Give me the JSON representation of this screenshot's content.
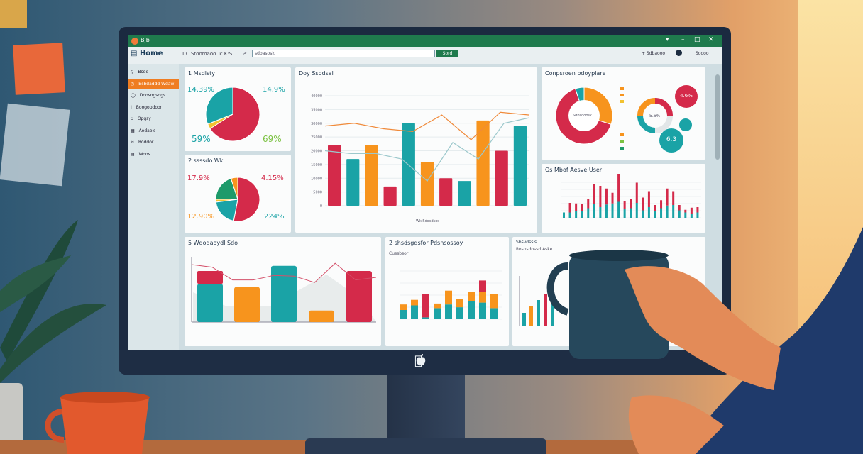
{
  "window": {
    "title": "Bjb",
    "controls": [
      "▾",
      "–",
      "□",
      "✕"
    ]
  },
  "toolbar": {
    "home": "Home",
    "breadcrumb": "T:C Stoomaoo Tc  K:S",
    "search_value": "sdbasosk",
    "search_button": "Sord",
    "right_items": [
      "+ Sdbaooo",
      "Soooo"
    ]
  },
  "sidebar": {
    "items": [
      {
        "label": "Bsdd",
        "icon": "person-icon",
        "active": false
      },
      {
        "label": "Bsbdaddd Wdaw",
        "icon": "clock-icon",
        "active": true
      },
      {
        "label": "Doosogsdgs",
        "icon": "circle-icon",
        "active": false
      },
      {
        "label": "Boogopdoor",
        "icon": "text-cursor-icon",
        "active": false
      },
      {
        "label": "Opgsy",
        "icon": "box-icon",
        "active": false
      },
      {
        "label": "Aodaols",
        "icon": "chart-icon",
        "active": false
      },
      {
        "label": "Roddor",
        "icon": "tools-icon",
        "active": false
      },
      {
        "label": "Woos",
        "icon": "grid-icon",
        "active": false
      }
    ]
  },
  "colors": {
    "red": "#d42a4a",
    "teal": "#1aa3a6",
    "orange": "#f7941d",
    "green": "#1e9a6a",
    "yellow": "#f2c230",
    "titlebar": "#1f7a4d"
  },
  "panels": {
    "p1": {
      "title": "1 Msdlsty",
      "pcts": [
        "14.39%",
        "14.9%",
        "59%",
        "69%"
      ]
    },
    "p2": {
      "title": "2 ssssdo Wk",
      "pcts": [
        "17.9%",
        "4.15%",
        "12.90%",
        "224%"
      ]
    },
    "p3": {
      "title": "Doy Ssodsal",
      "xlabel": "Wk Sdosdsos"
    },
    "p4": {
      "title": "Conpsroen bdoyplare",
      "center": "Sdbsdoosk",
      "small_center": "5.6%",
      "badge1": "4.6%",
      "badge2": "6.3"
    },
    "p5": {
      "title": "Os Mbof Aesve User"
    },
    "p6": {
      "title": "5 Wdodaoydl Sdo"
    },
    "p7": {
      "title": "2 shsdsgdsfor Pdsnsossoy",
      "subtitle": "Cussbsor"
    },
    "p8": {
      "title": "Sbsvdssis",
      "subtitle": "Rosnsdossd Aske"
    }
  },
  "chart_data": [
    {
      "type": "pie",
      "panel": "p1",
      "values": [
        66,
        3,
        31
      ],
      "colors": [
        "#d42a4a",
        "#f2c230",
        "#1aa3a6"
      ]
    },
    {
      "type": "pie",
      "panel": "p2",
      "values": [
        53,
        20,
        2,
        20,
        5
      ],
      "colors": [
        "#d42a4a",
        "#1aa3a6",
        "#f2c230",
        "#1e9a6a",
        "#f7941d"
      ]
    },
    {
      "type": "bar",
      "panel": "p3",
      "values": [
        22000,
        17000,
        22000,
        7000,
        30000,
        16000,
        10000,
        9000,
        31000,
        20000,
        29000
      ],
      "colors": [
        "#d42a4a",
        "#1aa3a6",
        "#f7941d",
        "#d42a4a",
        "#1aa3a6",
        "#f7941d",
        "#d42a4a",
        "#1aa3a6",
        "#f7941d",
        "#d42a4a",
        "#1aa3a6"
      ],
      "ylim": [
        0,
        40000
      ],
      "line_orange": [
        29000,
        30000,
        28000,
        27000,
        33000,
        24000,
        34000,
        33000
      ],
      "line_teal": [
        20000,
        19000,
        19000,
        17000,
        9000,
        23000,
        17000,
        30000,
        32000
      ]
    },
    {
      "type": "pie",
      "panel": "p4",
      "values": [
        30,
        65,
        5
      ],
      "colors": [
        "#f7941d",
        "#d42a4a",
        "#1aa3a6"
      ]
    },
    {
      "type": "bar",
      "panel": "p5",
      "stacked": true,
      "base": [
        1,
        1,
        1.2,
        1.3,
        1.8,
        2.6,
        2,
        2.5,
        2.7,
        3,
        1.6,
        1.8,
        2.8,
        1.4,
        2,
        1.2,
        1.8,
        2.3,
        2.4,
        1.4,
        1,
        0.8,
        1
      ],
      "top": [
        0,
        1.8,
        1.5,
        1.3,
        1.8,
        3.7,
        4,
        3,
        2,
        5.7,
        1.6,
        1.8,
        3.8,
        2.4,
        3,
        1.2,
        1.5,
        3.2,
        2.6,
        1,
        0.5,
        1.1,
        1
      ],
      "colors": [
        "#1aa3a6",
        "#d42a4a"
      ]
    },
    {
      "type": "bar",
      "panel": "p6",
      "values": [
        60,
        55,
        88,
        18,
        80
      ],
      "stack_top": [
        20,
        0,
        0,
        0,
        0
      ],
      "colors": [
        "#1aa3a6",
        "#f7941d",
        "#1aa3a6",
        "#f7941d",
        "#d42a4a"
      ],
      "line": [
        90,
        86,
        66,
        66,
        73,
        72,
        62,
        92,
        66,
        70
      ]
    },
    {
      "type": "bar",
      "panel": "p7",
      "stacked": true,
      "teal": [
        1,
        1.5,
        0.2,
        1.2,
        1.6,
        1.3,
        2,
        1.8,
        1.2
      ],
      "orange": [
        0.6,
        0.6,
        0,
        0.5,
        1.5,
        0.9,
        1,
        1.2,
        1.5
      ],
      "red": [
        0,
        0,
        2.5,
        0,
        0,
        0,
        0,
        1.2,
        0
      ]
    },
    {
      "type": "bar",
      "panel": "p8",
      "values": [
        1,
        1.5,
        2,
        2.5,
        1.8
      ],
      "colors": [
        "#1aa3a6",
        "#f7941d",
        "#1aa3a6",
        "#d42a4a",
        "#1aa3a6"
      ]
    }
  ]
}
